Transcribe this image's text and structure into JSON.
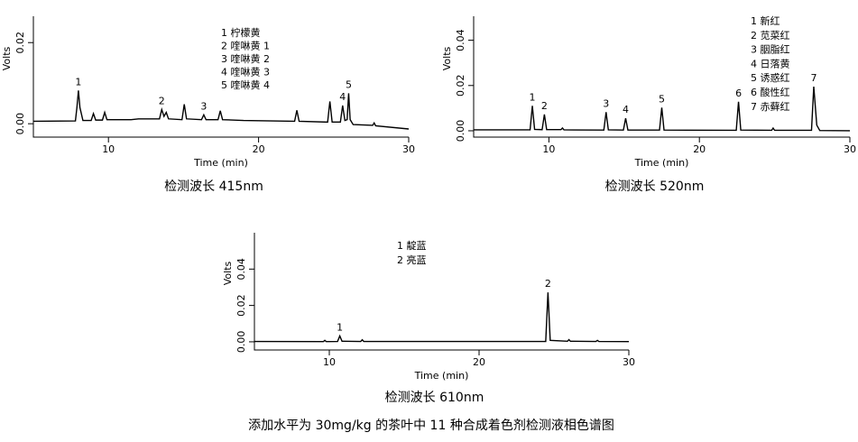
{
  "caption": "添加水平为 30mg/kg 的茶叶中 11 种合成着色剂检测液相色谱图",
  "chart_data": [
    {
      "type": "line",
      "title": "检测波长 415nm",
      "xlabel": "Time (min)",
      "ylabel": "Volts",
      "color": "#000000",
      "xlim": [
        5,
        30
      ],
      "xticks": [
        10,
        20,
        30
      ],
      "ylim": [
        -0.0033,
        0.0265
      ],
      "yticks": [
        {
          "value": 0,
          "label": "0.00"
        },
        {
          "value": 0.02,
          "label": "0.02"
        }
      ],
      "legend": [
        "1 柠檬黄",
        "2 喹啉黄 1",
        "3 喹啉黄 2",
        "4 喹啉黄 3",
        "5 喹啉黄 4"
      ],
      "peaks": [
        {
          "label": "1",
          "x": 8.0
        },
        {
          "label": "2",
          "x": 13.55
        },
        {
          "label": "3",
          "x": 16.35
        },
        {
          "label": "4",
          "x": 25.6
        },
        {
          "label": "5",
          "x": 26.0
        }
      ],
      "x": [
        5,
        7.8,
        7.9,
        8.0,
        8.1,
        8.3,
        8.85,
        9.0,
        9.15,
        9.6,
        9.75,
        9.9,
        11.5,
        12,
        13.4,
        13.55,
        13.7,
        13.85,
        14.0,
        14.9,
        15.05,
        15.2,
        16.2,
        16.35,
        16.5,
        17.3,
        17.45,
        17.6,
        19,
        22.4,
        22.55,
        22.7,
        24.6,
        24.75,
        24.9,
        25.45,
        25.6,
        25.75,
        25.9,
        26.0,
        26.1,
        26.3,
        27.6,
        27.7,
        27.8,
        30
      ],
      "values": [
        0.0006,
        0.0007,
        0.004,
        0.0082,
        0.004,
        0.0008,
        0.0008,
        0.0025,
        0.0009,
        0.0009,
        0.0028,
        0.001,
        0.001,
        0.0012,
        0.0012,
        0.0035,
        0.0018,
        0.0028,
        0.0012,
        0.001,
        0.0048,
        0.0012,
        0.001,
        0.0022,
        0.001,
        0.001,
        0.0032,
        0.001,
        0.0008,
        0.0006,
        0.0033,
        0.0006,
        0.0004,
        0.0055,
        0.0004,
        0.0004,
        0.0045,
        0.0008,
        0.001,
        0.0075,
        0.001,
        -0.0002,
        -0.0004,
        0.0002,
        -0.0005,
        -0.0013
      ]
    },
    {
      "type": "line",
      "title": "检测波长 520nm",
      "xlabel": "Time (min)",
      "ylabel": "Volts",
      "color": "#000000",
      "xlim": [
        5,
        30
      ],
      "xticks": [
        10,
        20,
        30
      ],
      "ylim": [
        -0.0028,
        0.0506
      ],
      "yticks": [
        {
          "value": 0,
          "label": "0.00"
        },
        {
          "value": 0.02,
          "label": "0.02"
        },
        {
          "value": 0.04,
          "label": "0.04"
        }
      ],
      "legend": [
        "1 新红",
        "2 苋菜红",
        "3 胭脂红",
        "4 日落黄",
        "5 诱惑红",
        "6 酸性红",
        "7 赤藓红"
      ],
      "peaks": [
        {
          "label": "1",
          "x": 8.9
        },
        {
          "label": "2",
          "x": 9.7
        },
        {
          "label": "3",
          "x": 13.8
        },
        {
          "label": "4",
          "x": 15.1
        },
        {
          "label": "5",
          "x": 17.5
        },
        {
          "label": "6",
          "x": 22.6
        },
        {
          "label": "7",
          "x": 27.6
        }
      ],
      "x": [
        5,
        8.75,
        8.9,
        9.05,
        9.55,
        9.7,
        9.85,
        10.8,
        10.9,
        11,
        13.65,
        13.8,
        13.95,
        14.95,
        15.1,
        15.25,
        17.35,
        17.5,
        17.65,
        22.45,
        22.6,
        22.75,
        24.8,
        24.9,
        25,
        27.45,
        27.6,
        27.8,
        28,
        30
      ],
      "values": [
        0.0004,
        0.0004,
        0.011,
        0.0006,
        0.0005,
        0.0072,
        0.0005,
        0.0005,
        0.0012,
        0.0004,
        0.0003,
        0.0082,
        0.0004,
        0.0003,
        0.0055,
        0.0003,
        0.0003,
        0.0102,
        0.0003,
        0.0002,
        0.0128,
        0.0003,
        0.0002,
        0.0012,
        0.0002,
        0.0002,
        0.0195,
        0.0025,
        0.0001,
        0
      ]
    },
    {
      "type": "line",
      "title": "检测波长 610nm",
      "xlabel": "Time (min)",
      "ylabel": "Volts",
      "color": "#000000",
      "xlim": [
        5,
        30
      ],
      "xticks": [
        10,
        20,
        30
      ],
      "ylim": [
        -0.0045,
        0.06
      ],
      "yticks": [
        {
          "value": 0,
          "label": "0.00"
        },
        {
          "value": 0.02,
          "label": "0.02"
        },
        {
          "value": 0.04,
          "label": "0.04"
        }
      ],
      "legend": [
        "1 靛蓝",
        "2 亮蓝"
      ],
      "peaks": [
        {
          "label": "1",
          "x": 10.7
        },
        {
          "label": "2",
          "x": 24.6
        }
      ],
      "x": [
        5,
        9.6,
        9.7,
        9.8,
        10.55,
        10.7,
        10.85,
        12.1,
        12.2,
        12.3,
        24.45,
        24.6,
        24.75,
        25.9,
        26,
        26.1,
        27.8,
        27.9,
        28,
        30
      ],
      "values": [
        0.0002,
        0.0001,
        0.0008,
        0.0001,
        0.0002,
        0.0032,
        0.0003,
        0.0002,
        0.0011,
        0.0002,
        0.0002,
        0.0272,
        0.0008,
        0.0003,
        0.0012,
        0.0003,
        0.0002,
        0.0008,
        0.0002,
        0.0001
      ]
    }
  ]
}
